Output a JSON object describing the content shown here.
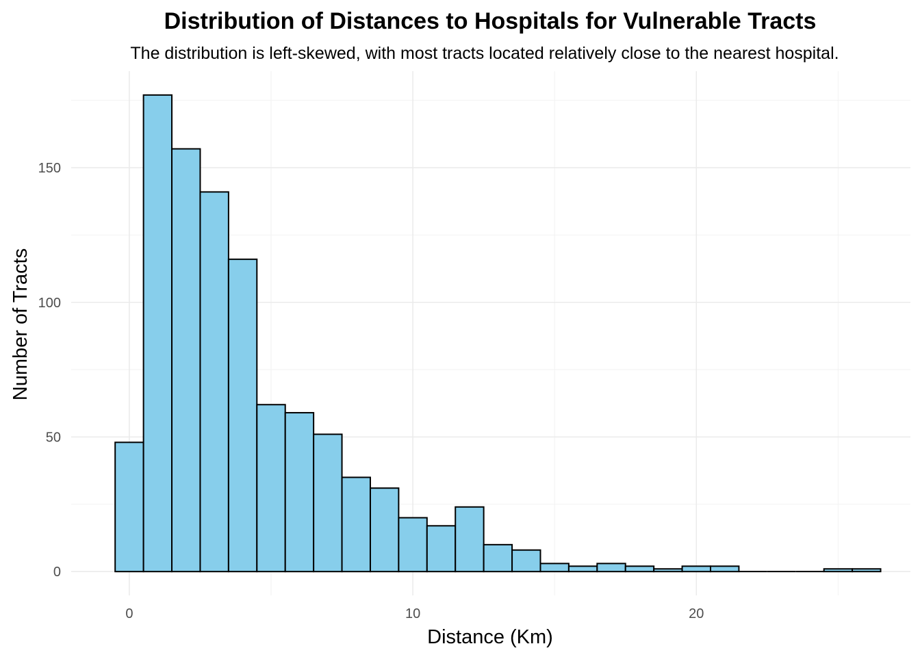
{
  "chart_data": {
    "type": "bar",
    "title": "Distribution of Distances to Hospitals for Vulnerable Tracts",
    "subtitle": "The distribution is left-skewed, with most tracts located relatively close to the nearest hospital.",
    "xlabel": "Distance (Km)",
    "ylabel": "Number of Tracts",
    "bin_width": 1,
    "x": [
      0,
      1,
      2,
      3,
      4,
      5,
      6,
      7,
      8,
      9,
      10,
      11,
      12,
      13,
      14,
      15,
      16,
      17,
      18,
      19,
      20,
      21,
      22,
      23,
      24,
      25,
      26
    ],
    "values": [
      48,
      177,
      157,
      141,
      116,
      62,
      59,
      51,
      35,
      31,
      20,
      17,
      24,
      10,
      8,
      3,
      2,
      3,
      2,
      1,
      2,
      2,
      0,
      0,
      0,
      1,
      1
    ],
    "xlim": [
      -2.05,
      27.55
    ],
    "ylim": [
      -8.85,
      185.85
    ],
    "x_ticks": [
      0,
      10,
      20
    ],
    "x_tick_labels": [
      "0",
      "10",
      "20"
    ],
    "y_ticks": [
      0,
      50,
      100,
      150
    ],
    "y_tick_labels": [
      "0",
      "50",
      "100",
      "150"
    ],
    "grid": true,
    "legend": "none",
    "bar_fill": "#87ceeb",
    "bar_outline": "#000000",
    "grid_color": "#ebebeb"
  }
}
